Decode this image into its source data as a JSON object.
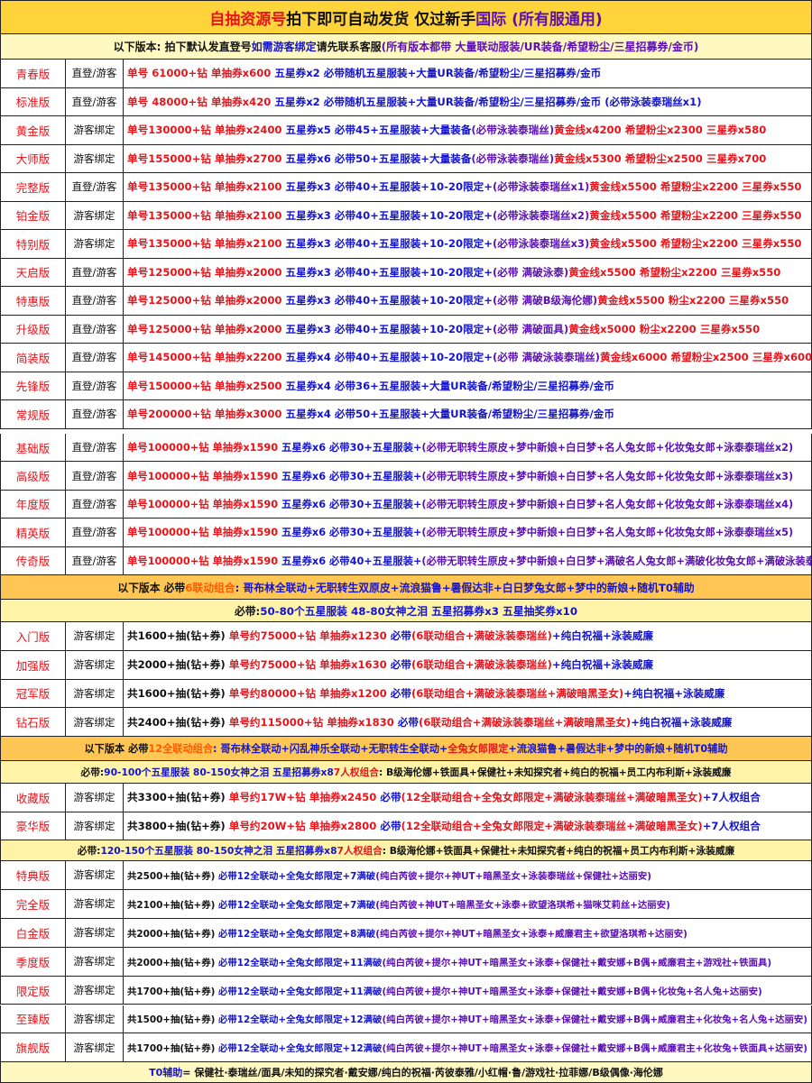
{
  "title_segments": [
    {
      "t": "自抽资源号 ",
      "c": "red"
    },
    {
      "t": "拍下即可自动发货 仅过新手 ",
      "c": "black"
    },
    {
      "t": "国际 (所有服通用)",
      "c": "purple"
    }
  ],
  "notice1_segments": [
    {
      "t": "以下版本: 拍下默认发直登号 ",
      "c": "black"
    },
    {
      "t": "如需游客绑定 ",
      "c": "blue"
    },
    {
      "t": "请先联系客服 ",
      "c": "black"
    },
    {
      "t": "(所有版本都带 大量联动服装/UR装备/希望粉尘/三星招募券/金币)",
      "c": "purple"
    }
  ],
  "section1": [
    {
      "name": "青春版",
      "login": "直登/游客",
      "detail": [
        {
          "t": "单号 61000+钻 单抽券x600 ",
          "c": "red"
        },
        {
          "t": "五星券x2 必带随机五星服装+大量UR装备/希望粉尘/三星招募券/金币",
          "c": "blue"
        }
      ]
    },
    {
      "name": "标准版",
      "login": "直登/游客",
      "detail": [
        {
          "t": "单号 48000+钻 单抽券x420 ",
          "c": "red"
        },
        {
          "t": "五星券x2 必带随机五星服装+大量UR装备/希望粉尘/三星招募券/金币 (必带泳装泰瑞丝x1)",
          "c": "blue"
        }
      ]
    },
    {
      "name": "黄金版",
      "login": "游客绑定",
      "detail": [
        {
          "t": "单号130000+钻 单抽券x2400 ",
          "c": "red"
        },
        {
          "t": "五星券x5 必带45+五星服装+大量装备",
          "c": "blue"
        },
        {
          "t": "(必带泳装泰瑞丝)",
          "c": "purple"
        },
        {
          "t": "黄金线x4200 希望粉尘x2300 三星券x580",
          "c": "red"
        }
      ]
    },
    {
      "name": "大师版",
      "login": "游客绑定",
      "detail": [
        {
          "t": "单号155000+钻 单抽券x2700 ",
          "c": "red"
        },
        {
          "t": "五星券x6 必带50+五星服装+大量装备",
          "c": "blue"
        },
        {
          "t": "(必带泳装泰瑞丝)",
          "c": "purple"
        },
        {
          "t": "黄金线x5300 希望粉尘x2500 三星券x700",
          "c": "red"
        }
      ]
    },
    {
      "name": "完整版",
      "login": "直登/游客",
      "detail": [
        {
          "t": "单号135000+钻 单抽券x2100 ",
          "c": "red"
        },
        {
          "t": "五星券x3 必带40+五星服装+10-20限定+",
          "c": "blue"
        },
        {
          "t": "(必带泳装泰瑞丝x1)",
          "c": "purple"
        },
        {
          "t": "黄金线x5500 希望粉尘x2200 三星券x550",
          "c": "red"
        }
      ]
    },
    {
      "name": "铂金版",
      "login": "游客绑定",
      "detail": [
        {
          "t": "单号135000+钻 单抽券x2100 ",
          "c": "red"
        },
        {
          "t": "五星券x3 必带40+五星服装+10-20限定+",
          "c": "blue"
        },
        {
          "t": "(必带泳装泰瑞丝x2)",
          "c": "purple"
        },
        {
          "t": "黄金线x5500 希望粉尘x2200 三星券x550",
          "c": "red"
        }
      ]
    },
    {
      "name": "特别版",
      "login": "游客绑定",
      "detail": [
        {
          "t": "单号135000+钻 单抽券x2100 ",
          "c": "red"
        },
        {
          "t": "五星券x3 必带40+五星服装+10-20限定+",
          "c": "blue"
        },
        {
          "t": "(必带泳装泰瑞丝x3)",
          "c": "purple"
        },
        {
          "t": "黄金线x5500 希望粉尘x2200 三星券x550",
          "c": "red"
        }
      ]
    },
    {
      "name": "天启版",
      "login": "直登/游客",
      "detail": [
        {
          "t": "单号125000+钻 单抽券x2000 ",
          "c": "red"
        },
        {
          "t": "五星券x3 必带40+五星服装+10-20限定+",
          "c": "blue"
        },
        {
          "t": "(必带 满破泳泰)",
          "c": "purple"
        },
        {
          "t": "黄金线x5500 希望粉尘x2200 三星券x550",
          "c": "red"
        }
      ]
    },
    {
      "name": "特惠版",
      "login": "直登/游客",
      "detail": [
        {
          "t": "单号125000+钻 单抽券x2000 ",
          "c": "red"
        },
        {
          "t": "五星券x3 必带40+五星服装+10-20限定+",
          "c": "blue"
        },
        {
          "t": "(必带 满破B级海伦娜)",
          "c": "purple"
        },
        {
          "t": "黄金线x5500 粉尘x2200 三星券x550",
          "c": "red"
        }
      ]
    },
    {
      "name": "升级版",
      "login": "直登/游客",
      "detail": [
        {
          "t": "单号125000+钻 单抽券x2000 ",
          "c": "red"
        },
        {
          "t": "五星券x3 必带40+五星服装+10-20限定+",
          "c": "blue"
        },
        {
          "t": "(必带 满破面具)",
          "c": "purple"
        },
        {
          "t": "黄金线x5000 粉尘x2200 三星券x550",
          "c": "red"
        }
      ]
    },
    {
      "name": "简装版",
      "login": "直登/游客",
      "detail": [
        {
          "t": "单号145000+钻 单抽券x2200 ",
          "c": "red"
        },
        {
          "t": "五星券x4 必带40+五星服装+10-20限定+",
          "c": "blue"
        },
        {
          "t": "(必带 满破泳装泰瑞丝)",
          "c": "purple"
        },
        {
          "t": "黄金线x6000 希望粉尘x2500 三星券x600",
          "c": "red"
        }
      ]
    },
    {
      "name": "先锋版",
      "login": "直登/游客",
      "detail": [
        {
          "t": "单号150000+钻 单抽券x2500 ",
          "c": "red"
        },
        {
          "t": "五星券x4 必带36+五星服装+大量UR装备/希望粉尘/三星招募券/金币",
          "c": "blue"
        }
      ]
    },
    {
      "name": "常规版",
      "login": "直登/游客",
      "detail": [
        {
          "t": "单号200000+钻 单抽券x3000 ",
          "c": "red"
        },
        {
          "t": "五星券x4 必带50+五星服装+大量UR装备/希望粉尘/三星招募券/金币",
          "c": "blue"
        }
      ]
    }
  ],
  "section2": [
    {
      "name": "基础版",
      "login": "直登/游客",
      "detail": [
        {
          "t": "单号100000+钻 单抽券x1590 ",
          "c": "red"
        },
        {
          "t": "五星券x6 必带30+五星服装+",
          "c": "blue"
        },
        {
          "t": "(必带无职转生原皮+梦中新娘+白日梦+名人兔女郎+化妆兔女郎+泳泰泰瑞丝x2)",
          "c": "purple"
        }
      ]
    },
    {
      "name": "高级版",
      "login": "直登/游客",
      "detail": [
        {
          "t": "单号100000+钻 单抽券x1590 ",
          "c": "red"
        },
        {
          "t": "五星券x6 必带30+五星服装+",
          "c": "blue"
        },
        {
          "t": "(必带无职转生原皮+梦中新娘+白日梦+名人兔女郎+化妆兔女郎+泳泰泰瑞丝x3)",
          "c": "purple"
        }
      ]
    },
    {
      "name": "年度版",
      "login": "直登/游客",
      "detail": [
        {
          "t": "单号100000+钻 单抽券x1590 ",
          "c": "red"
        },
        {
          "t": "五星券x6 必带30+五星服装+",
          "c": "blue"
        },
        {
          "t": "(必带无职转生原皮+梦中新娘+白日梦+名人兔女郎+化妆兔女郎+泳泰泰瑞丝x4)",
          "c": "purple"
        }
      ]
    },
    {
      "name": "精英版",
      "login": "直登/游客",
      "detail": [
        {
          "t": "单号100000+钻 单抽券x1590 ",
          "c": "red"
        },
        {
          "t": "五星券x6 必带30+五星服装+",
          "c": "blue"
        },
        {
          "t": "(必带无职转生原皮+梦中新娘+白日梦+名人兔女郎+化妆兔女郎+泳泰泰瑞丝x5)",
          "c": "purple"
        }
      ]
    },
    {
      "name": "传奇版",
      "login": "直登/游客",
      "detail": [
        {
          "t": "单号100000+钻 单抽券x1590 ",
          "c": "red"
        },
        {
          "t": "五星券x6 必带40+五星服装+",
          "c": "blue"
        },
        {
          "t": "(必带无职转生原皮+梦中新娘+白日梦+满破名人兔女郎+满破化妆兔女郎+满破泳装泰瑞丝)",
          "c": "purple"
        }
      ]
    }
  ],
  "notice2_segments": [
    {
      "t": "以下版本 必带 ",
      "c": "black"
    },
    {
      "t": "6联动组合",
      "c": "orange"
    },
    {
      "t": ": 哥布林全联动+无职转生双原皮+流浪猫鲁+暑假达非+白日梦兔女郎+梦中的新娘+随机T0辅助",
      "c": "blue"
    }
  ],
  "notice3_segments": [
    {
      "t": "必带: ",
      "c": "black"
    },
    {
      "t": "50-80个五星服装 48-80女神之泪 五星招募券x3 五星抽奖券x10",
      "c": "blue"
    }
  ],
  "section3": [
    {
      "name": "入门版",
      "login": "游客绑定",
      "detail": [
        {
          "t": "共1600+抽(钻+券) ",
          "c": "black"
        },
        {
          "t": "单号约75000+钻 单抽券x1230 ",
          "c": "red"
        },
        {
          "t": "必带",
          "c": "blue"
        },
        {
          "t": "(6联动组合+满破泳装泰瑞丝)",
          "c": "red"
        },
        {
          "t": "+纯白祝福+泳装威廉",
          "c": "blue"
        }
      ]
    },
    {
      "name": "加强版",
      "login": "游客绑定",
      "detail": [
        {
          "t": "共2000+抽(钻+券) ",
          "c": "black"
        },
        {
          "t": "单号约75000+钻 单抽券x1630 ",
          "c": "red"
        },
        {
          "t": "必带",
          "c": "blue"
        },
        {
          "t": "(6联动组合+满破泳装泰瑞丝)",
          "c": "red"
        },
        {
          "t": "+纯白祝福+泳装威廉",
          "c": "blue"
        }
      ]
    },
    {
      "name": "冠军版",
      "login": "游客绑定",
      "detail": [
        {
          "t": "共1600+抽(钻+券) ",
          "c": "black"
        },
        {
          "t": "单号约80000+钻 单抽券x1200 ",
          "c": "red"
        },
        {
          "t": "必带",
          "c": "blue"
        },
        {
          "t": "(6联动组合+满破泳装泰瑞丝+满破暗黑圣女)",
          "c": "red"
        },
        {
          "t": "+纯白祝福+泳装威廉",
          "c": "blue"
        }
      ]
    },
    {
      "name": "钻石版",
      "login": "游客绑定",
      "detail": [
        {
          "t": "共2400+抽(钻+券) ",
          "c": "black"
        },
        {
          "t": "单号约115000+钻 单抽券x1830 ",
          "c": "red"
        },
        {
          "t": "必带",
          "c": "blue"
        },
        {
          "t": "(6联动组合+满破泳装泰瑞丝+满破暗黑圣女)",
          "c": "red"
        },
        {
          "t": "+纯白祝福+泳装威廉",
          "c": "blue"
        }
      ]
    }
  ],
  "notice4_segments": [
    {
      "t": "以下版本 必带 ",
      "c": "black"
    },
    {
      "t": "12全联动组合",
      "c": "orange"
    },
    {
      "t": ": 哥布林全联动+闪乱神乐全联动+无职转生全联动+",
      "c": "blue"
    },
    {
      "t": "全兔女郎限定",
      "c": "red"
    },
    {
      "t": "+流浪猫鲁+暑假达非+梦中的新娘+随机T0辅助",
      "c": "blue"
    }
  ],
  "notice5_segments": [
    {
      "t": "必带: ",
      "c": "black"
    },
    {
      "t": "90-100个五星服装 80-150女神之泪 五星招募券x8 ",
      "c": "blue"
    },
    {
      "t": "7人权组合",
      "c": "red"
    },
    {
      "t": ": B级海伦娜+铁面具+保健社+未知探究者+纯白的祝福+员工内布利斯+泳装威廉",
      "c": "black"
    }
  ],
  "section4": [
    {
      "name": "收藏版",
      "login": "游客绑定",
      "detail": [
        {
          "t": "共3300+抽(钻+券) ",
          "c": "black"
        },
        {
          "t": "单号约17W+钻 单抽券x2450 ",
          "c": "red"
        },
        {
          "t": "必带",
          "c": "blue"
        },
        {
          "t": "(12全联动组合+全兔女郎限定+满破泳装泰瑞丝+满破暗黑圣女)",
          "c": "red"
        },
        {
          "t": "+7人权组合",
          "c": "blue"
        }
      ]
    },
    {
      "name": "豪华版",
      "login": "游客绑定",
      "detail": [
        {
          "t": "共3800+抽(钻+券) ",
          "c": "black"
        },
        {
          "t": "单号约20W+钻 单抽券x2800 ",
          "c": "red"
        },
        {
          "t": "必带",
          "c": "blue"
        },
        {
          "t": "(12全联动组合+全兔女郎限定+满破泳装泰瑞丝+满破暗黑圣女)",
          "c": "red"
        },
        {
          "t": "+7人权组合",
          "c": "blue"
        }
      ]
    }
  ],
  "notice6_segments": [
    {
      "t": "必带: ",
      "c": "black"
    },
    {
      "t": "120-150个五星服装 80-150女神之泪 五星招募券x8 ",
      "c": "blue"
    },
    {
      "t": "7人权组合",
      "c": "red"
    },
    {
      "t": ": B级海伦娜+铁面具+保健社+未知探究者+纯白的祝福+员工内布利斯+泳装威廉",
      "c": "black"
    }
  ],
  "section5": [
    {
      "name": "特典版",
      "login": "游客绑定",
      "detail": [
        {
          "t": "共2500+抽(钻+券) ",
          "c": "black"
        },
        {
          "t": "必带12全联动+全兔女郎限定+7满破",
          "c": "blue"
        },
        {
          "t": "(纯白芮彼+提尔+神UT+暗黑圣女+泳装泰瑞丝+保健社+达丽安)",
          "c": "purple"
        }
      ]
    },
    {
      "name": "完全版",
      "login": "游客绑定",
      "detail": [
        {
          "t": "共2100+抽(钻+券) ",
          "c": "black"
        },
        {
          "t": "必带12全联动+全兔女郎限定+7满破",
          "c": "blue"
        },
        {
          "t": "(纯白芮彼+神UT+暗黑圣女+泳泰+欲望洛琪希+猫咪艾莉丝+达丽安)",
          "c": "purple"
        }
      ]
    },
    {
      "name": "白金版",
      "login": "游客绑定",
      "detail": [
        {
          "t": "共2000+抽(钻+券) ",
          "c": "black"
        },
        {
          "t": "必带12全联动+全兔女郎限定+8满破",
          "c": "blue"
        },
        {
          "t": "(纯白芮彼+提尔+神UT+暗黑圣女+泳泰+威廉君主+欲望洛琪希+达丽安)",
          "c": "purple"
        }
      ]
    },
    {
      "name": "季度版",
      "login": "游客绑定",
      "detail": [
        {
          "t": "共2000+抽(钻+券) ",
          "c": "black"
        },
        {
          "t": "必带12全联动+全兔女郎限定+11满破",
          "c": "blue"
        },
        {
          "t": "(纯白芮彼+提尔+神UT+暗黑圣女+泳泰+保健社+戴安娜+B偶+威廉君主+游戏社+铁面具)",
          "c": "purple"
        }
      ]
    },
    {
      "name": "限定版",
      "login": "游客绑定",
      "detail": [
        {
          "t": "共1700+抽(钻+券) ",
          "c": "black"
        },
        {
          "t": "必带12全联动+全兔女郎限定+11满破",
          "c": "blue"
        },
        {
          "t": "(纯白芮彼+提尔+神UT+暗黑圣女+泳泰+保健社+戴安娜+B偶+化妆兔+名人兔+达丽安)",
          "c": "purple"
        }
      ]
    },
    {
      "name": "至臻版",
      "login": "游客绑定",
      "detail": [
        {
          "t": "共1500+抽(钻+券) ",
          "c": "black"
        },
        {
          "t": "必带12全联动+全兔女郎限定+12满破",
          "c": "blue"
        },
        {
          "t": "(纯白芮彼+提尔+神UT+暗黑圣女+泳泰+保健社+戴安娜+B偶+威廉君主+化妆兔+名人兔+达丽安)",
          "c": "purple"
        }
      ]
    },
    {
      "name": "旗舰版",
      "login": "游客绑定",
      "detail": [
        {
          "t": "共1700+抽(钻+券) ",
          "c": "black"
        },
        {
          "t": "必带12全联动+全兔女郎限定+12满破",
          "c": "blue"
        },
        {
          "t": "(纯白芮彼+提尔+神UT+暗黑圣女+泳泰+保健社+戴安娜+B偶+威廉君主+化妆兔+铁面具+达丽安)",
          "c": "purple"
        }
      ]
    }
  ],
  "footer_segments": [
    {
      "t": "T0辅助 ",
      "c": "blue"
    },
    {
      "t": "= 保健社·泰瑞丝/面具/未知的探究者·戴安娜/纯白的祝福·芮彼泰雅/小红帽·鲁/游戏社·拉菲娜/B级偶像·海伦娜",
      "c": "black"
    }
  ],
  "colors": {
    "title_bg": "#ffd43a",
    "notice_bg": "#fff8c0",
    "band_orange": "#ffc653",
    "band_yellow": "#fff3a8",
    "row_white": "#ffffff",
    "red_text": "#e8141b",
    "blue_text": "#1414cc",
    "purple_text": "#5b0fb5"
  }
}
